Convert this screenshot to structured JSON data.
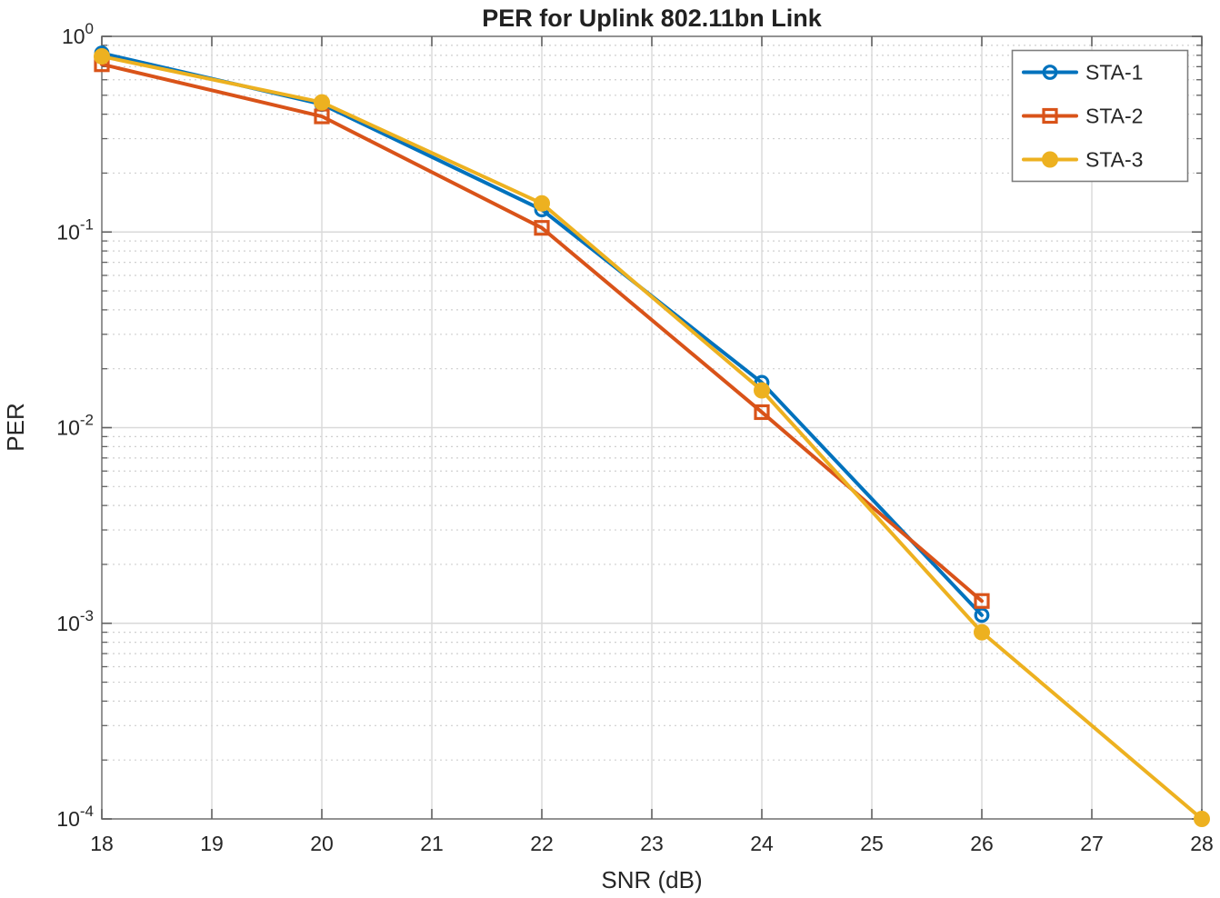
{
  "chart_data": {
    "type": "line",
    "title": "PER for Uplink 802.11bn Link",
    "xlabel": "SNR (dB)",
    "ylabel": "PER",
    "x_axis": {
      "min": 18,
      "max": 28,
      "ticks": [
        18,
        19,
        20,
        21,
        22,
        23,
        24,
        25,
        26,
        27,
        28
      ]
    },
    "y_axis": {
      "scale": "log",
      "min": 0.0001,
      "max": 1,
      "tick_exponents": [
        0,
        -1,
        -2,
        -3,
        -4
      ],
      "tick_base": "10"
    },
    "grid": true,
    "minor_grid": true,
    "legend_position": "top-right",
    "series": [
      {
        "name": "STA-1",
        "color": "#0072BD",
        "marker": "circle-open",
        "x": [
          18,
          20,
          22,
          24,
          26
        ],
        "y": [
          0.82,
          0.45,
          0.13,
          0.017,
          0.0011
        ]
      },
      {
        "name": "STA-2",
        "color": "#D95319",
        "marker": "square-open",
        "x": [
          18,
          20,
          22,
          24,
          26
        ],
        "y": [
          0.72,
          0.39,
          0.105,
          0.012,
          0.0013
        ]
      },
      {
        "name": "STA-3",
        "color": "#EDB120",
        "marker": "circle-filled",
        "x": [
          18,
          20,
          22,
          24,
          26,
          28
        ],
        "y": [
          0.79,
          0.46,
          0.14,
          0.0155,
          0.0009,
          0.0001
        ]
      }
    ],
    "style_colors": {
      "axis_box": "#7d7d7d",
      "tick_mark": "#616161",
      "major_grid": "#d9d9d9",
      "minor_grid": "#cfcfcf",
      "text": "#262626",
      "legend_border": "#7d7d7d",
      "background": "#ffffff"
    }
  }
}
